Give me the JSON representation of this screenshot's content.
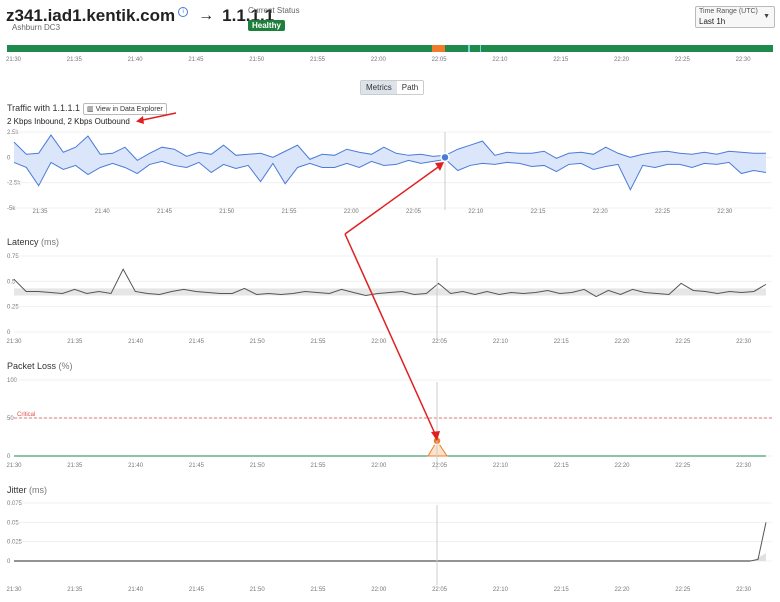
{
  "header": {
    "source": "z341.iad1.kentik.com",
    "arrow": "→",
    "destination": "1.1.1.1",
    "status_label": "Current Status",
    "status_value": "Healthy",
    "location": "Ashburn DC3",
    "time_range_label": "Time Range (UTC)",
    "time_range_value": "Last 1h"
  },
  "colors": {
    "healthy": "#1e8a4c",
    "warning": "#f07c2a",
    "accent": "#4a7bd8",
    "critical": "#d9534f"
  },
  "timeline_ticks": [
    "21:30",
    "21:35",
    "21:40",
    "21:45",
    "21:50",
    "21:55",
    "22:00",
    "22:05",
    "22:10",
    "22:15",
    "22:20",
    "22:25",
    "22:30"
  ],
  "tabs": [
    {
      "label": "Metrics",
      "active": true
    },
    {
      "label": "Path",
      "active": false
    }
  ],
  "traffic": {
    "title": "Traffic with 1.1.1.1",
    "explorer_button": "View in Data Explorer",
    "summary": "2 Kbps Inbound, 2 Kbps Outbound"
  },
  "latency": {
    "title": "Latency",
    "unit": "(ms)"
  },
  "packet_loss": {
    "title": "Packet Loss",
    "unit": "(%)",
    "critical_label": "Critical"
  },
  "jitter": {
    "title": "Jitter",
    "unit": "(ms)"
  },
  "chart_data": [
    {
      "type": "area",
      "title": "Traffic with 1.1.1.1",
      "x": [
        "21:33",
        "21:34",
        "21:35",
        "21:36",
        "21:37",
        "21:38",
        "21:39",
        "21:40",
        "21:41",
        "21:42",
        "21:43",
        "21:44",
        "21:45",
        "21:46",
        "21:47",
        "21:48",
        "21:49",
        "21:50",
        "21:51",
        "21:52",
        "21:53",
        "21:54",
        "21:55",
        "21:56",
        "21:57",
        "21:58",
        "21:59",
        "22:00",
        "22:01",
        "22:02",
        "22:03",
        "22:04",
        "22:05",
        "22:06",
        "22:07",
        "22:08",
        "22:09",
        "22:10",
        "22:11",
        "22:12",
        "22:13",
        "22:14",
        "22:15",
        "22:16",
        "22:17",
        "22:18",
        "22:19",
        "22:20",
        "22:21",
        "22:22",
        "22:23",
        "22:24",
        "22:25",
        "22:26",
        "22:27",
        "22:28",
        "22:29",
        "22:30",
        "22:31",
        "22:32",
        "22:33",
        "22:34"
      ],
      "series": [
        {
          "values": [
            1.5,
            0.3,
            0.4,
            2.2,
            0.5,
            1.0,
            2.1,
            0.3,
            0.4,
            1.0,
            -0.3,
            0.4,
            1.0,
            0.8,
            0.1,
            0.5,
            0.3,
            1.2,
            0.2,
            0.3,
            0.4,
            0.0,
            0.6,
            1.2,
            -0.2,
            0.3,
            0.2,
            0.8,
            0.5,
            0.3,
            1.0,
            0.4,
            0.2,
            0.3,
            0.1,
            0.2,
            0.8,
            1.2,
            1.6,
            0.2,
            0.5,
            0.4,
            0.4,
            0.6,
            -0.1,
            0.4,
            0.5,
            0.3,
            1.0,
            0.4,
            0.0,
            0.3,
            0.5,
            0.6,
            0.4,
            0.3,
            0.5,
            0.3,
            0.6,
            0.5,
            0.4,
            0.4
          ]
        },
        {
          "values": [
            -0.5,
            -1.0,
            -2.8,
            -0.5,
            -1.2,
            -0.8,
            -1.7,
            -1.0,
            -0.6,
            -1.0,
            -1.6,
            -0.7,
            -0.4,
            -0.8,
            -1.0,
            -0.5,
            -1.5,
            -0.7,
            -1.1,
            -0.8,
            -2.4,
            -0.6,
            -2.6,
            -1.0,
            -0.6,
            -1.0,
            -1.0,
            -0.6,
            -1.0,
            -0.4,
            -0.8,
            -0.7,
            -0.3,
            -0.6,
            -0.4,
            -0.2,
            -1.3,
            -0.8,
            -0.6,
            -0.7,
            -0.5,
            -0.6,
            -0.9,
            -0.8,
            -1.4,
            -0.7,
            -0.6,
            -1.2,
            -0.9,
            -0.7,
            -3.2,
            -0.8,
            -1.0,
            -0.7,
            -0.7,
            -1.0,
            -0.6,
            -0.7,
            -0.5,
            -1.6,
            -1.3,
            -1.5
          ]
        }
      ],
      "yticks": [
        "2.5k",
        "0",
        "-2.5k",
        "-5k"
      ],
      "ylim": [
        -5,
        2.5
      ],
      "xticks": [
        "21:35",
        "21:40",
        "21:45",
        "21:50",
        "21:55",
        "22:00",
        "22:05",
        "22:10",
        "22:15",
        "22:20",
        "22:25",
        "22:30"
      ]
    },
    {
      "type": "line",
      "title": "Latency",
      "ylabel": "(ms)",
      "x": [
        "21:30",
        "21:31",
        "21:32",
        "21:33",
        "21:34",
        "21:35",
        "21:36",
        "21:37",
        "21:38",
        "21:39",
        "21:40",
        "21:41",
        "21:42",
        "21:43",
        "21:44",
        "21:45",
        "21:46",
        "21:47",
        "21:48",
        "21:49",
        "21:50",
        "21:51",
        "21:52",
        "21:53",
        "21:54",
        "21:55",
        "21:56",
        "21:57",
        "21:58",
        "21:59",
        "22:00",
        "22:01",
        "22:02",
        "22:03",
        "22:04",
        "22:05",
        "22:06",
        "22:07",
        "22:08",
        "22:09",
        "22:10",
        "22:11",
        "22:12",
        "22:13",
        "22:14",
        "22:15",
        "22:16",
        "22:17",
        "22:18",
        "22:19",
        "22:20",
        "22:21",
        "22:22",
        "22:23",
        "22:24",
        "22:25",
        "22:26",
        "22:27",
        "22:28",
        "22:29",
        "22:30",
        "22:31",
        "22:32"
      ],
      "series": [
        {
          "values": [
            0.52,
            0.4,
            0.4,
            0.39,
            0.38,
            0.42,
            0.38,
            0.4,
            0.38,
            0.62,
            0.4,
            0.38,
            0.37,
            0.4,
            0.42,
            0.4,
            0.39,
            0.38,
            0.38,
            0.43,
            0.37,
            0.38,
            0.37,
            0.38,
            0.4,
            0.39,
            0.38,
            0.42,
            0.39,
            0.36,
            0.38,
            0.39,
            0.4,
            0.37,
            0.38,
            0.48,
            0.38,
            0.4,
            0.37,
            0.4,
            0.37,
            0.39,
            0.38,
            0.39,
            0.41,
            0.38,
            0.39,
            0.42,
            0.35,
            0.41,
            0.37,
            0.42,
            0.39,
            0.38,
            0.37,
            0.48,
            0.41,
            0.4,
            0.38,
            0.4,
            0.39,
            0.4,
            0.47
          ]
        }
      ],
      "yticks": [
        "0.75",
        "0.5",
        "0.25",
        "0"
      ],
      "ylim": [
        0,
        0.75
      ],
      "xticks": [
        "21:30",
        "21:35",
        "21:40",
        "21:45",
        "21:50",
        "21:55",
        "22:00",
        "22:05",
        "22:10",
        "22:15",
        "22:20",
        "22:25",
        "22:30"
      ]
    },
    {
      "type": "line",
      "title": "Packet Loss",
      "ylabel": "(%)",
      "x": [
        "21:30",
        "22:04",
        "22:05",
        "22:06",
        "22:33"
      ],
      "series": [
        {
          "values": [
            0,
            0,
            20,
            0,
            0
          ]
        }
      ],
      "yticks": [
        "100",
        "50",
        "0"
      ],
      "ylim": [
        0,
        100
      ],
      "annotations": [
        {
          "label": "Critical",
          "y": 50
        }
      ],
      "xticks": [
        "21:30",
        "21:35",
        "21:40",
        "21:45",
        "21:50",
        "21:55",
        "22:00",
        "22:05",
        "22:10",
        "22:15",
        "22:20",
        "22:25",
        "22:30"
      ]
    },
    {
      "type": "line",
      "title": "Jitter",
      "ylabel": "(ms)",
      "x": [
        "21:30",
        "22:31",
        "22:32",
        "22:33"
      ],
      "series": [
        {
          "values": [
            0,
            0,
            0.01,
            0.05
          ]
        }
      ],
      "yticks": [
        "0.075",
        "0.05",
        "0.025",
        "0"
      ],
      "ylim": [
        0,
        0.075
      ],
      "xticks": [
        "21:30",
        "21:35",
        "21:40",
        "21:45",
        "21:50",
        "21:55",
        "22:00",
        "22:05",
        "22:10",
        "22:15",
        "22:20",
        "22:25",
        "22:30"
      ]
    }
  ]
}
